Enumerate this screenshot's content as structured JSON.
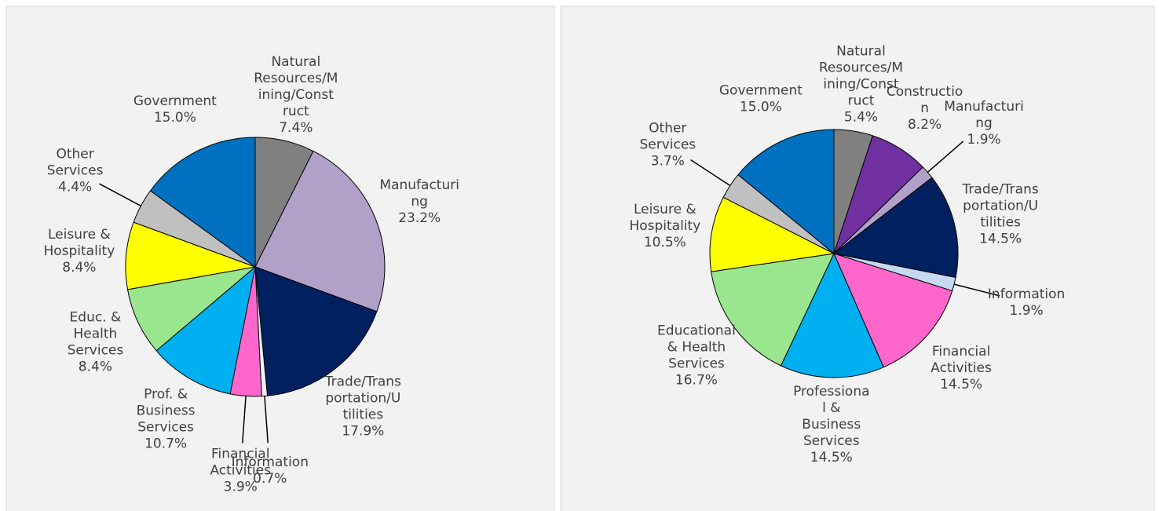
{
  "chart_data": [
    {
      "type": "pie",
      "categories": [
        "Natural Resources/Mining/Construct",
        "Manufacturing",
        "Trade/Transportation/Utilities",
        "Information",
        "Financial Activities",
        "Prof. & Business Services",
        "Educ. & Health Services",
        "Leisure & Hospitality",
        "Other Services",
        "Government"
      ],
      "values": [
        7.4,
        23.2,
        17.9,
        0.7,
        3.9,
        10.7,
        8.4,
        8.4,
        4.4,
        15.0
      ],
      "value_labels": [
        "7.4%",
        "23.2%",
        "17.9%",
        "0.7%",
        "3.9%",
        "10.7%",
        "8.4%",
        "8.4%",
        "4.4%",
        "15.0%"
      ],
      "colors": [
        "#808080",
        "#b1a0c7",
        "#002060",
        "#f2f2f2",
        "#ff66cc",
        "#00b0f0",
        "#99e68f",
        "#ffff00",
        "#c0c0c0",
        "#0070c0"
      ]
    },
    {
      "type": "pie",
      "categories": [
        "Natural Resources/Mining/Construct",
        "Construction",
        "Manufacturing",
        "Trade/Transportation/Utilities",
        "Information",
        "Financial Activities",
        "Professional & Business Services",
        "Educational & Health Services",
        "Leisure & Hospitality",
        "Other Services",
        "Government"
      ],
      "values": [
        5.4,
        8.2,
        1.9,
        14.5,
        1.9,
        14.5,
        14.5,
        16.7,
        10.5,
        3.7,
        15.0
      ],
      "value_labels": [
        "5.4%",
        "8.2%",
        "1.9%",
        "14.5%",
        "1.9%",
        "14.5%",
        "14.5%",
        "16.7%",
        "10.5%",
        "3.7%",
        "15.0%"
      ],
      "colors": [
        "#808080",
        "#7030a0",
        "#b1a0c7",
        "#002060",
        "#c5d9f1",
        "#ff66cc",
        "#00b0f0",
        "#99e68f",
        "#ffff00",
        "#c0c0c0",
        "#0070c0"
      ]
    }
  ]
}
